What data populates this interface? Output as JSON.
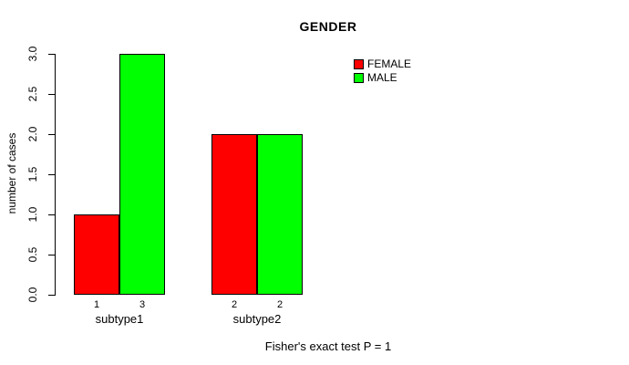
{
  "chart_data": {
    "type": "bar",
    "title": "GENDER",
    "ylabel": "number of cases",
    "xlabel": "",
    "ylim": [
      0,
      3
    ],
    "yticks": [
      "0.0",
      "0.5",
      "1.0",
      "1.5",
      "2.0",
      "2.5",
      "3.0"
    ],
    "grid": false,
    "categories": [
      "subtype1",
      "subtype2"
    ],
    "series": [
      {
        "name": "FEMALE",
        "color": "#ff0000",
        "values": [
          1,
          2
        ]
      },
      {
        "name": "MALE",
        "color": "#00ff00",
        "values": [
          3,
          2
        ]
      }
    ],
    "bar_value_labels": [
      [
        "1",
        "3"
      ],
      [
        "2",
        "2"
      ]
    ],
    "legend": {
      "position": "top-right",
      "entries": [
        {
          "label": "FEMALE",
          "color": "#ff0000"
        },
        {
          "label": "MALE",
          "color": "#00ff00"
        }
      ]
    },
    "annotation": "Fisher's exact test P = 1",
    "axis_color": "#000000",
    "background_color": "#ffffff"
  }
}
